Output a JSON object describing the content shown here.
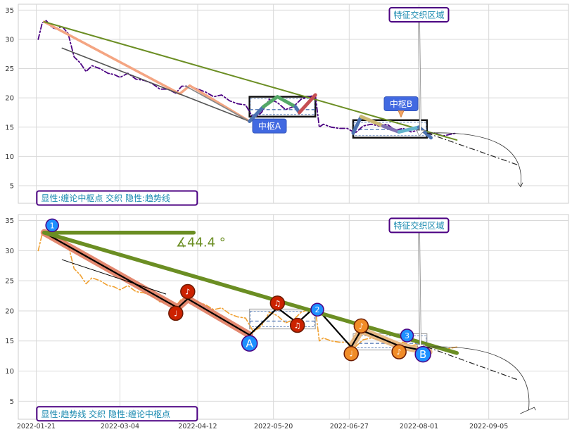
{
  "chart_data": [
    {
      "type": "line",
      "panel": "top",
      "ylim": [
        2,
        36
      ],
      "yticks": [
        5,
        10,
        15,
        20,
        25,
        30,
        35
      ],
      "xlim": [
        "2022-01-12",
        "2022-10-15"
      ],
      "grid": true,
      "series": [
        {
          "role": "price",
          "color": "#4b0082",
          "style": "dash-dot",
          "points": [
            [
              "2022-01-22",
              30
            ],
            [
              "2022-01-24",
              32.8
            ],
            [
              "2022-01-26",
              33.2
            ],
            [
              "2022-01-29",
              32
            ],
            [
              "2022-01-31",
              31.8
            ],
            [
              "2022-02-03",
              32.2
            ],
            [
              "2022-02-06",
              31
            ],
            [
              "2022-02-09",
              27
            ],
            [
              "2022-02-12",
              26
            ],
            [
              "2022-02-15",
              24.5
            ],
            [
              "2022-02-18",
              25.5
            ],
            [
              "2022-02-22",
              25
            ],
            [
              "2022-02-26",
              24.2
            ],
            [
              "2022-03-01",
              24
            ],
            [
              "2022-03-04",
              23.5
            ],
            [
              "2022-03-08",
              24.2
            ],
            [
              "2022-03-12",
              23.2
            ],
            [
              "2022-03-16",
              23
            ],
            [
              "2022-03-20",
              22.5
            ],
            [
              "2022-03-24",
              21.5
            ],
            [
              "2022-03-28",
              21.5
            ],
            [
              "2022-04-01",
              20.8
            ],
            [
              "2022-04-04",
              22
            ],
            [
              "2022-04-08",
              22
            ],
            [
              "2022-04-12",
              21.5
            ],
            [
              "2022-04-16",
              21
            ],
            [
              "2022-04-20",
              20.2
            ],
            [
              "2022-04-24",
              20.5
            ],
            [
              "2022-04-28",
              19.5
            ],
            [
              "2022-05-02",
              19
            ],
            [
              "2022-05-06",
              18.8
            ],
            [
              "2022-05-10",
              16.5
            ],
            [
              "2022-05-14",
              17.5
            ],
            [
              "2022-05-18",
              19.8
            ],
            [
              "2022-05-22",
              19.2
            ],
            [
              "2022-05-26",
              18
            ],
            [
              "2022-05-30",
              18.5
            ],
            [
              "2022-06-03",
              19.8
            ],
            [
              "2022-06-07",
              20.2
            ],
            [
              "2022-06-10",
              20.5
            ],
            [
              "2022-06-12",
              15
            ],
            [
              "2022-06-14",
              15.5
            ],
            [
              "2022-06-18",
              15
            ],
            [
              "2022-06-22",
              14.8
            ],
            [
              "2022-06-26",
              14.8
            ],
            [
              "2022-06-30",
              14
            ],
            [
              "2022-07-04",
              15.2
            ],
            [
              "2022-07-08",
              15.5
            ],
            [
              "2022-07-12",
              15.2
            ],
            [
              "2022-07-16",
              15.5
            ],
            [
              "2022-07-20",
              14.5
            ],
            [
              "2022-07-24",
              14.8
            ],
            [
              "2022-07-28",
              14.2
            ],
            [
              "2022-08-01",
              14.5
            ],
            [
              "2022-08-05",
              13.8
            ],
            [
              "2022-08-09",
              14
            ],
            [
              "2022-08-13",
              13.5
            ],
            [
              "2022-08-17",
              13.8
            ],
            [
              "2022-08-20",
              14
            ]
          ]
        },
        {
          "role": "stroke",
          "color": "#f4a582",
          "points": [
            [
              "2022-01-25",
              33
            ],
            [
              "2022-04-03",
              20.7
            ],
            [
              "2022-04-08",
              22.1
            ],
            [
              "2022-05-08",
              16
            ]
          ]
        },
        {
          "role": "trend",
          "color": "#555555",
          "points": [
            [
              "2022-02-03",
              28.5
            ],
            [
              "2022-05-08",
              16
            ]
          ]
        },
        {
          "role": "trend",
          "color": "#888888",
          "points": [
            [
              "2022-04-06",
              22
            ],
            [
              "2022-05-08",
              16
            ]
          ]
        },
        {
          "role": "trend-main",
          "color": "#6b8e23",
          "points": [
            [
              "2022-01-25",
              33
            ],
            [
              "2022-08-20",
              12.8
            ]
          ]
        },
        {
          "role": "pivot-stroke",
          "color": "#4c72b0",
          "points": [
            [
              "2022-05-08",
              16
            ],
            [
              "2022-05-15",
              18.5
            ]
          ]
        },
        {
          "role": "pivot-stroke",
          "color": "#55a868",
          "points": [
            [
              "2022-05-15",
              18.5
            ],
            [
              "2022-05-22",
              20.2
            ],
            [
              "2022-05-31",
              18.5
            ]
          ]
        },
        {
          "role": "pivot-stroke",
          "color": "#4c72b0",
          "points": [
            [
              "2022-05-31",
              18.5
            ],
            [
              "2022-06-02",
              17.5
            ]
          ]
        },
        {
          "role": "pivot-stroke",
          "color": "#c44e52",
          "points": [
            [
              "2022-06-02",
              17.5
            ],
            [
              "2022-06-10",
              20.5
            ]
          ]
        },
        {
          "role": "pivot-stroke",
          "color": "#4c72b0",
          "points": [
            [
              "2022-06-29",
              14
            ],
            [
              "2022-07-03",
              16.8
            ]
          ]
        },
        {
          "role": "pivot-stroke",
          "color": "#ccb974",
          "points": [
            [
              "2022-07-03",
              16.8
            ],
            [
              "2022-07-14",
              15.2
            ]
          ]
        },
        {
          "role": "pivot-stroke",
          "color": "#8172b3",
          "points": [
            [
              "2022-07-14",
              15.2
            ],
            [
              "2022-07-22",
              14.2
            ]
          ]
        },
        {
          "role": "pivot-stroke",
          "color": "#64b5cd",
          "points": [
            [
              "2022-07-22",
              14.2
            ],
            [
              "2022-08-01",
              15
            ]
          ]
        },
        {
          "role": "pivot-stroke",
          "color": "#4c72b0",
          "points": [
            [
              "2022-08-01",
              15
            ],
            [
              "2022-08-07",
              13.2
            ]
          ]
        }
      ],
      "pivot_boxes": [
        {
          "label": "中枢A",
          "x0": "2022-05-08",
          "x1": "2022-06-10",
          "y0": 16.8,
          "y1": 20.2,
          "mid": 18
        },
        {
          "label": "中枢B",
          "x0": "2022-06-29",
          "x1": "2022-08-05",
          "y0": 13.2,
          "y1": 16.2,
          "mid": 14.6
        }
      ],
      "projection": {
        "points": [
          [
            "2022-08-05",
            14
          ],
          [
            "2022-09-20",
            8.5
          ]
        ],
        "curve_end": [
          "2022-09-21",
          4.8
        ]
      },
      "annotations": [
        {
          "text": "中枢A",
          "x": "2022-05-18",
          "y": 15.2
        },
        {
          "text": "中枢B",
          "x": "2022-07-23",
          "y": 19
        },
        {
          "text": "特征交织区域",
          "x": "2022-08-01",
          "y": 34.2
        },
        {
          "text": "显性:缠论中枢点 交织 隐性:趋势线",
          "x": "2022-01-22",
          "y": 2.9
        }
      ]
    },
    {
      "type": "line",
      "panel": "bottom",
      "ylim": [
        2,
        36
      ],
      "yticks": [
        5,
        10,
        15,
        20,
        25,
        30,
        35
      ],
      "xticks": [
        "2022-01-21",
        "2022-03-04",
        "2022-04-12",
        "2022-05-20",
        "2022-06-27",
        "2022-08-01",
        "2022-09-05"
      ],
      "xlim": [
        "2022-01-12",
        "2022-10-15"
      ],
      "grid": true,
      "series": [
        {
          "role": "price",
          "color": "#f0a030",
          "style": "dash-dot",
          "points": [
            [
              "2022-01-22",
              30
            ],
            [
              "2022-01-24",
              32.8
            ],
            [
              "2022-01-26",
              33.2
            ],
            [
              "2022-01-29",
              32
            ],
            [
              "2022-01-31",
              31.8
            ],
            [
              "2022-02-03",
              32.2
            ],
            [
              "2022-02-06",
              31
            ],
            [
              "2022-02-09",
              27
            ],
            [
              "2022-02-12",
              26
            ],
            [
              "2022-02-15",
              24.5
            ],
            [
              "2022-02-18",
              25.5
            ],
            [
              "2022-02-22",
              25
            ],
            [
              "2022-02-26",
              24.2
            ],
            [
              "2022-03-01",
              24
            ],
            [
              "2022-03-04",
              23.5
            ],
            [
              "2022-03-08",
              24.2
            ],
            [
              "2022-03-12",
              23.2
            ],
            [
              "2022-03-16",
              23
            ],
            [
              "2022-03-20",
              22.5
            ],
            [
              "2022-03-24",
              21.5
            ],
            [
              "2022-03-28",
              21.5
            ],
            [
              "2022-04-01",
              20.8
            ],
            [
              "2022-04-04",
              22
            ],
            [
              "2022-04-08",
              22
            ],
            [
              "2022-04-12",
              21.5
            ],
            [
              "2022-04-16",
              21
            ],
            [
              "2022-04-20",
              20.2
            ],
            [
              "2022-04-24",
              20.5
            ],
            [
              "2022-04-28",
              19.5
            ],
            [
              "2022-05-02",
              19
            ],
            [
              "2022-05-06",
              18.8
            ],
            [
              "2022-05-10",
              16.5
            ],
            [
              "2022-05-14",
              17.5
            ],
            [
              "2022-05-18",
              19.8
            ],
            [
              "2022-05-22",
              19.2
            ],
            [
              "2022-05-26",
              18
            ],
            [
              "2022-05-30",
              18.5
            ],
            [
              "2022-06-03",
              19.8
            ],
            [
              "2022-06-07",
              20.2
            ],
            [
              "2022-06-10",
              20.5
            ],
            [
              "2022-06-12",
              15
            ],
            [
              "2022-06-14",
              15.5
            ],
            [
              "2022-06-18",
              15
            ],
            [
              "2022-06-22",
              14.8
            ],
            [
              "2022-06-26",
              14.8
            ],
            [
              "2022-06-30",
              14
            ],
            [
              "2022-07-04",
              15.2
            ],
            [
              "2022-07-08",
              15.5
            ],
            [
              "2022-07-12",
              15.2
            ],
            [
              "2022-07-16",
              15.5
            ],
            [
              "2022-07-20",
              14.5
            ],
            [
              "2022-07-24",
              14.8
            ],
            [
              "2022-07-28",
              14.2
            ],
            [
              "2022-08-01",
              14.5
            ],
            [
              "2022-08-05",
              13.8
            ],
            [
              "2022-08-09",
              14
            ],
            [
              "2022-08-13",
              13.5
            ],
            [
              "2022-08-17",
              13.8
            ],
            [
              "2022-08-20",
              14
            ]
          ]
        },
        {
          "role": "stroke-band",
          "color": "#e07b5f",
          "points": [
            [
              "2022-01-25",
              33
            ],
            [
              "2022-04-02",
              20.5
            ],
            [
              "2022-04-07",
              22
            ],
            [
              "2022-05-08",
              16
            ]
          ]
        },
        {
          "role": "stroke-band",
          "color": "#e6b47a",
          "points": [
            [
              "2022-06-28",
              14
            ],
            [
              "2022-07-03",
              16.8
            ],
            [
              "2022-07-22",
              14.2
            ],
            [
              "2022-08-06",
              13.2
            ]
          ]
        },
        {
          "role": "trend-thin",
          "color": "#000000",
          "points": [
            [
              "2022-02-03",
              28.5
            ],
            [
              "2022-03-27",
              22.8
            ]
          ]
        },
        {
          "role": "stroke-path",
          "color": "#000000",
          "points": [
            [
              "2022-01-25",
              33
            ],
            [
              "2022-04-02",
              20.5
            ],
            [
              "2022-04-07",
              22
            ],
            [
              "2022-05-08",
              16
            ],
            [
              "2022-05-22",
              20.5
            ],
            [
              "2022-06-01",
              18
            ],
            [
              "2022-06-10",
              20.7
            ],
            [
              "2022-06-28",
              14
            ],
            [
              "2022-07-03",
              16.8
            ],
            [
              "2022-07-22",
              14.2
            ],
            [
              "2022-08-06",
              13.2
            ]
          ]
        },
        {
          "role": "trend-main",
          "color": "#6b8e23",
          "points": [
            [
              "2022-01-25",
              33
            ],
            [
              "2022-08-20",
              13
            ]
          ]
        },
        {
          "role": "trend-horizontal",
          "color": "#6b8e23",
          "points": [
            [
              "2022-01-25",
              33
            ],
            [
              "2022-04-10",
              33
            ]
          ]
        }
      ],
      "pivot_boxes": [
        {
          "x0": "2022-05-08",
          "x1": "2022-06-10",
          "y0": 17,
          "y1": 20.3,
          "mid": 18.3
        },
        {
          "x0": "2022-06-29",
          "x1": "2022-08-05",
          "y0": 13.5,
          "y1": 16.2,
          "mid": 14.6
        }
      ],
      "markers": [
        {
          "label": "1",
          "kind": "blue-small",
          "x": "2022-01-29",
          "y": 34.2
        },
        {
          "label": "♩",
          "kind": "red",
          "x": "2022-04-01",
          "y": 19.6
        },
        {
          "label": "♪",
          "kind": "red",
          "x": "2022-04-07",
          "y": 23.2
        },
        {
          "label": "A",
          "kind": "blue-large",
          "x": "2022-05-08",
          "y": 14.6
        },
        {
          "label": "♫",
          "kind": "red",
          "x": "2022-05-22",
          "y": 21.3
        },
        {
          "label": "♫",
          "kind": "red",
          "x": "2022-06-01",
          "y": 17.6
        },
        {
          "label": "2",
          "kind": "blue-small",
          "x": "2022-06-11",
          "y": 20.2
        },
        {
          "label": "♩",
          "kind": "orange",
          "x": "2022-06-28",
          "y": 12.9
        },
        {
          "label": "♪",
          "kind": "orange",
          "x": "2022-07-03",
          "y": 17.5
        },
        {
          "label": "♪",
          "kind": "orange",
          "x": "2022-07-22",
          "y": 13.2
        },
        {
          "label": "3",
          "kind": "blue-small",
          "x": "2022-07-26",
          "y": 15.9
        },
        {
          "label": "B",
          "kind": "blue-large",
          "x": "2022-08-03",
          "y": 12.8
        }
      ],
      "projection": {
        "points": [
          [
            "2022-08-05",
            14
          ],
          [
            "2022-09-20",
            8.5
          ]
        ],
        "curve_end": [
          "2022-09-25",
          3.5
        ]
      },
      "angle_label": "∡44.4 °",
      "annotations": [
        {
          "text": "特征交织区域",
          "x": "2022-08-01",
          "y": 34.2
        },
        {
          "text": "显性:趋势线 交织 隐性:缠论中枢点",
          "x": "2022-01-22",
          "y": 2.9
        }
      ]
    }
  ]
}
